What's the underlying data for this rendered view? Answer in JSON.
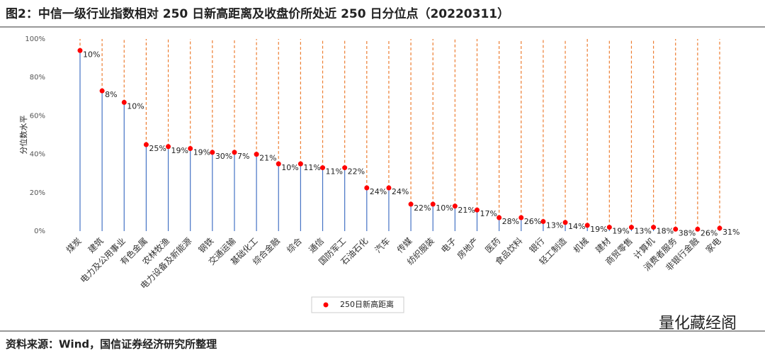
{
  "header": {
    "title": "图2：中信一级行业指数相对 250 日新高距离及收盘价所处近 250 日分位点（20220311）"
  },
  "footer": {
    "source": "资料来源：Wind，国信证券经济研究所整理",
    "watermark": "量化藏经阁"
  },
  "chart_data": {
    "type": "lollipop",
    "y_label": "分位数水平",
    "categories": [
      "煤炭",
      "建筑",
      "电力及公用事业",
      "有色金属",
      "农林牧渔",
      "电力设备及新能源",
      "钢铁",
      "交通运输",
      "基础化工",
      "综合金融",
      "综合",
      "通信",
      "国防军工",
      "石油石化",
      "汽车",
      "传媒",
      "纺织服装",
      "电子",
      "房地产",
      "医药",
      "食品饮料",
      "银行",
      "轻工制造",
      "机械",
      "建材",
      "商贸零售",
      "计算机",
      "消费者服务",
      "非银行金融",
      "家电"
    ],
    "series": [
      {
        "name": "250日新高距离",
        "color": "#ff0000",
        "stem_color": "#4472c4",
        "rest_color": "#ed7d31",
        "values": [
          94,
          73,
          67,
          45,
          44,
          43,
          41,
          41,
          40,
          35,
          35,
          33,
          33,
          22.5,
          22.5,
          14,
          14,
          13,
          11,
          7,
          7,
          5,
          4.5,
          3,
          2,
          2,
          2,
          1,
          1,
          1.5
        ],
        "value_labels": [
          "10%",
          "8%",
          "10%",
          "25%",
          "19%",
          "19%",
          "30%",
          "7%",
          "21%",
          "10%",
          "11%",
          "11%",
          "22%",
          "24%",
          "24%",
          "22%",
          "10%",
          "21%",
          "17%",
          "28%",
          "26%",
          "13%",
          "14%",
          "19%",
          "19%",
          "13%",
          "18%",
          "38%",
          "26%",
          "31%"
        ]
      }
    ],
    "ylim": [
      0,
      100
    ],
    "yticks": [
      {
        "value": 0,
        "label": "0%"
      },
      {
        "value": 20,
        "label": "20%"
      },
      {
        "value": 40,
        "label": "40%"
      },
      {
        "value": 60,
        "label": "60%"
      },
      {
        "value": 80,
        "label": "80%"
      },
      {
        "value": 100,
        "label": "100%"
      }
    ],
    "grid": false
  }
}
